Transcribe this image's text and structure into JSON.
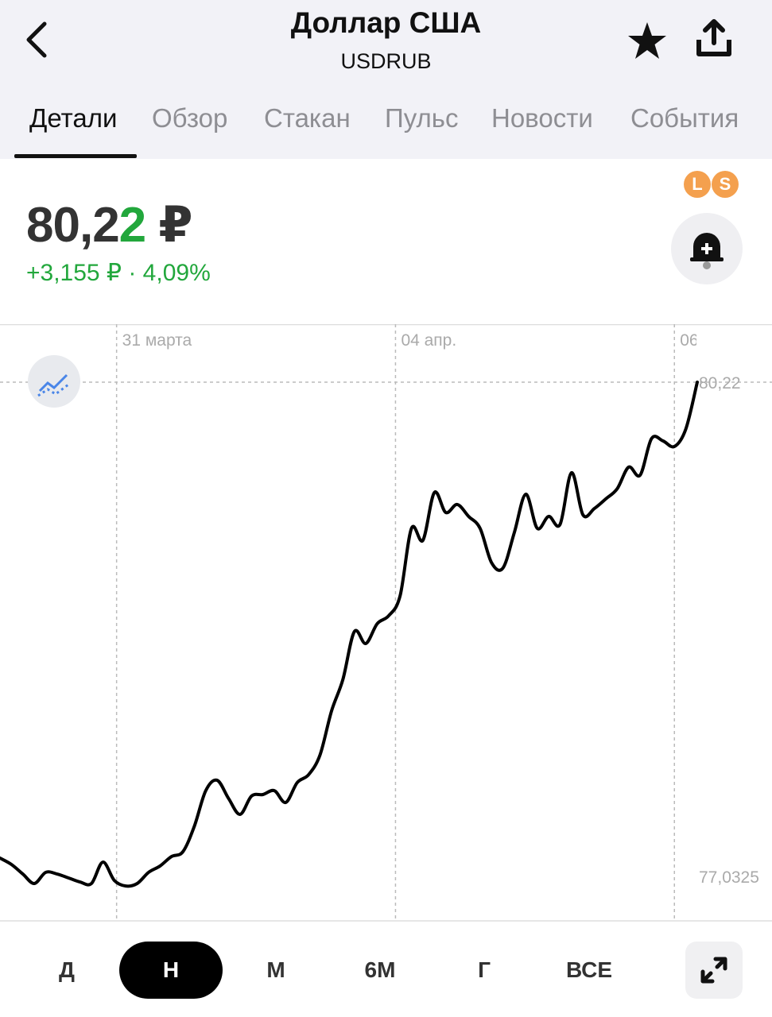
{
  "header": {
    "title": "Доллар США",
    "subtitle": "USDRUB"
  },
  "tabs": [
    "Детали",
    "Обзор",
    "Стакан",
    "Пульс",
    "Новости",
    "События"
  ],
  "quote": {
    "price_main": "80,2",
    "price_last_digit": "2",
    "currency": "₽",
    "change": "+3,155 ₽ · 4,09%",
    "badges": [
      "L",
      "S"
    ]
  },
  "ranges": [
    "Д",
    "Н",
    "М",
    "6М",
    "Г",
    "ВСЕ"
  ],
  "chart_data": {
    "type": "line",
    "color": "#000000",
    "values": [
      77.15,
      77.109,
      77.047,
      76.986,
      77.058,
      77.047,
      77.022,
      76.996,
      76.986,
      77.124,
      77.006,
      76.97,
      76.986,
      77.058,
      77.099,
      77.16,
      77.191,
      77.355,
      77.585,
      77.652,
      77.534,
      77.432,
      77.55,
      77.56,
      77.585,
      77.509,
      77.637,
      77.688,
      77.816,
      78.098,
      78.303,
      78.611,
      78.534,
      78.662,
      78.713,
      78.841,
      79.277,
      79.2,
      79.508,
      79.379,
      79.431,
      79.354,
      79.277,
      79.056,
      79.021,
      79.251,
      79.497,
      79.277,
      79.354,
      79.303,
      79.636,
      79.364,
      79.405,
      79.467,
      79.533,
      79.672,
      79.62,
      79.856,
      79.841,
      79.805,
      79.918,
      80.22
    ],
    "xlim": [
      0,
      61
    ],
    "xticks": [
      {
        "value": 10.2,
        "label": "31 марта"
      },
      {
        "value": 34.6,
        "label": "04 апр."
      },
      {
        "value": 59,
        "label": "06"
      }
    ],
    "ylim": [
      76.74,
      80.594
    ],
    "yticks": [
      {
        "value": 80.22,
        "label": "80,22"
      },
      {
        "value": 77.0325,
        "label": "77,0325"
      }
    ],
    "grid": true
  }
}
